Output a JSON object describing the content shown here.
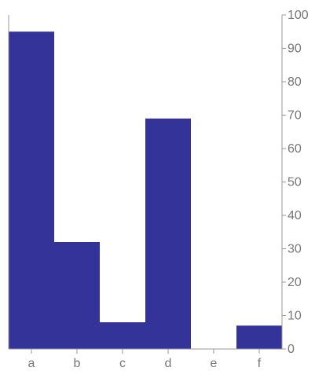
{
  "chart_data": {
    "type": "bar",
    "categories": [
      "a",
      "b",
      "c",
      "d",
      "e",
      "f"
    ],
    "values": [
      95,
      32,
      8,
      69,
      0,
      7
    ],
    "title": "",
    "xlabel": "",
    "ylabel": "",
    "ylim": [
      0,
      100
    ],
    "yticks": [
      0,
      10,
      20,
      30,
      40,
      50,
      60,
      70,
      80,
      90,
      100
    ],
    "ytick_labels": [
      "0",
      "10",
      "20",
      "30",
      "40",
      "50",
      "60",
      "70",
      "80",
      "90",
      "100"
    ],
    "y_axis_side": "right",
    "grid": false,
    "legend": "none",
    "bar_color": "#333399"
  }
}
